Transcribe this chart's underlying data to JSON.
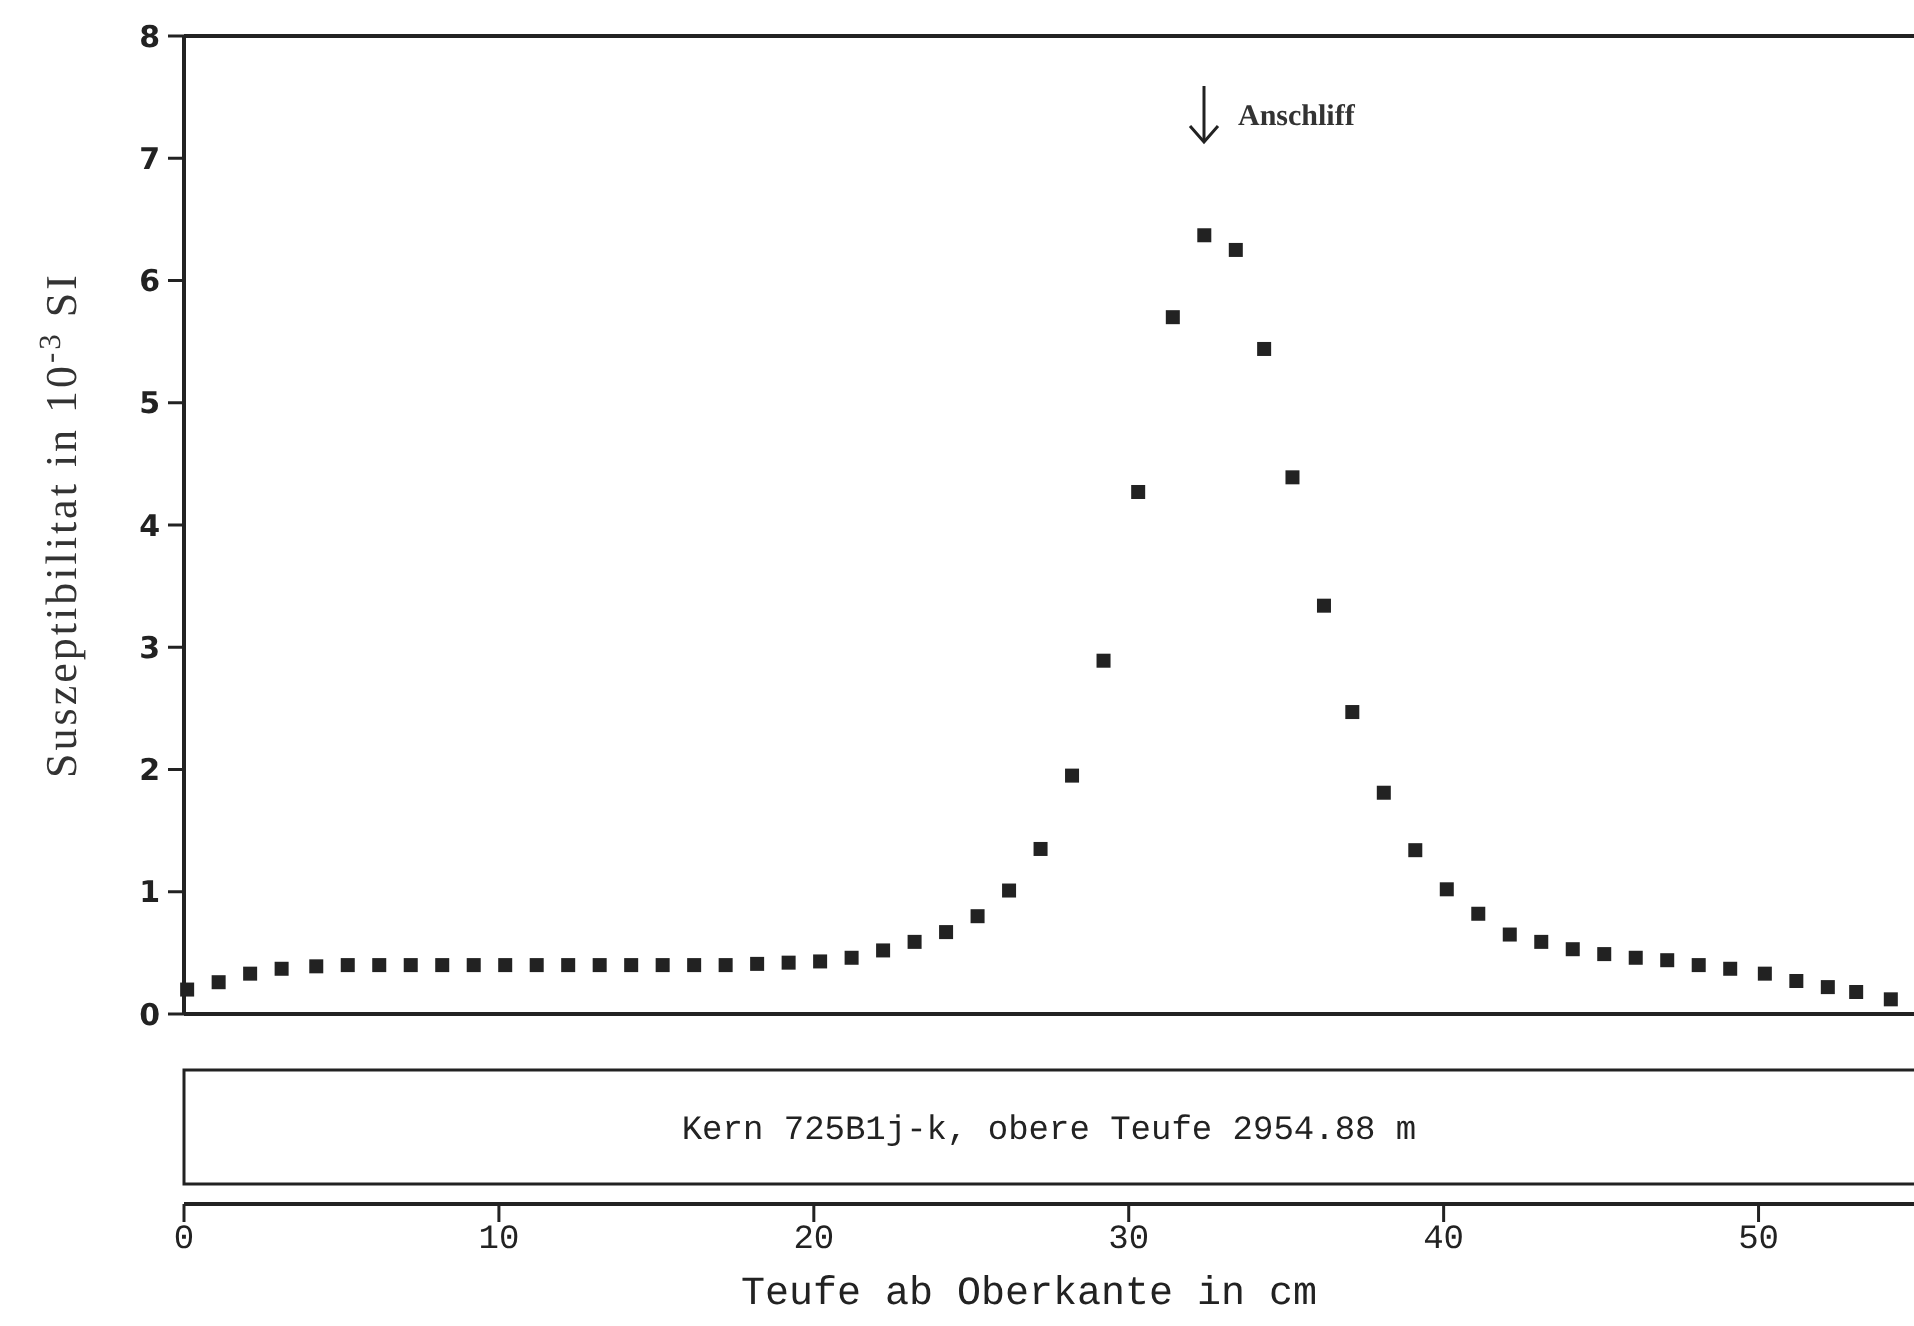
{
  "chart_data": {
    "type": "scatter",
    "xlabel": "Teufe ab Oberkante in cm",
    "ylabel": "Suszeptibilitat in 10$^{-3}$ SI",
    "x": [
      0.1,
      1.1,
      2.1,
      3.1,
      4.2,
      5.2,
      6.2,
      7.2,
      8.2,
      9.2,
      10.2,
      11.2,
      12.2,
      13.2,
      14.2,
      15.2,
      16.2,
      17.2,
      18.2,
      19.2,
      20.2,
      21.2,
      22.2,
      23.2,
      24.2,
      25.2,
      26.2,
      27.2,
      28.2,
      29.2,
      30.3,
      31.4,
      32.4,
      33.4,
      34.3,
      35.2,
      36.2,
      37.1,
      38.1,
      39.1,
      40.1,
      41.1,
      42.1,
      43.1,
      44.1,
      45.1,
      46.1,
      47.1,
      48.1,
      49.1,
      50.2,
      51.2,
      52.2,
      53.1,
      54.2
    ],
    "series": [
      {
        "color": "#222222",
        "values": [
          0.2,
          0.26,
          0.33,
          0.37,
          0.39,
          0.4,
          0.4,
          0.4,
          0.4,
          0.4,
          0.4,
          0.4,
          0.4,
          0.4,
          0.4,
          0.4,
          0.4,
          0.4,
          0.41,
          0.42,
          0.43,
          0.46,
          0.52,
          0.59,
          0.67,
          0.8,
          1.01,
          1.35,
          1.95,
          2.89,
          4.27,
          5.7,
          6.37,
          6.25,
          5.44,
          4.39,
          3.34,
          2.47,
          1.81,
          1.34,
          1.02,
          0.82,
          0.65,
          0.59,
          0.53,
          0.49,
          0.46,
          0.44,
          0.4,
          0.37,
          0.33,
          0.27,
          0.22,
          0.18,
          0.12
        ]
      }
    ],
    "xlim": [
      0,
      55
    ],
    "ylim": [
      0,
      8
    ],
    "xticks": [
      0,
      10,
      20,
      30,
      40,
      50
    ],
    "yticks": [
      0,
      1,
      2,
      3,
      4,
      5,
      6,
      7,
      8
    ],
    "marker": "square",
    "grid": false,
    "annotations": [
      "Anschliff",
      "Kern 725B1j-k, obere Teufe 2954.88 m"
    ]
  }
}
